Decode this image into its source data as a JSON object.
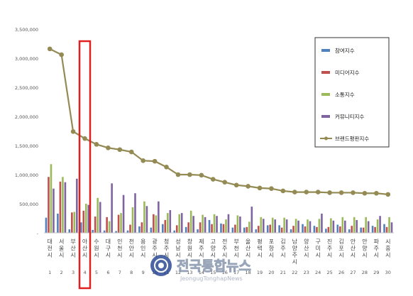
{
  "chart_data": {
    "type": "bar",
    "ylim": [
      0,
      3500000
    ],
    "yticks": [
      0,
      500000,
      1000000,
      1500000,
      2000000,
      2500000,
      3000000,
      3500000
    ],
    "ytick_labels": [
      "-",
      "500,000",
      "1,000,000",
      "1,500,000",
      "2,000,000",
      "2,500,000",
      "3,000,000",
      "3,500,000"
    ],
    "grid": false,
    "legend_position": "top-right",
    "categories": [
      "대전시",
      "서울시",
      "부산시",
      "아산시",
      "수원시",
      "대구시",
      "인천시",
      "천안시",
      "용인시",
      "광주시",
      "청주시",
      "성남시",
      "창원시",
      "제주시",
      "고양시",
      "전주시",
      "부천시",
      "울산시",
      "평택시",
      "포항시",
      "김주시",
      "남양주시",
      "양산시",
      "구미시",
      "진주시",
      "김포시",
      "안산시",
      "안양시",
      "파주시",
      "시흥시"
    ],
    "rank_labels": [
      "1",
      "2",
      "3",
      "4",
      "5",
      "6",
      "7",
      "8",
      "9",
      "10",
      "11",
      "12",
      "13",
      "14",
      "15",
      "16",
      "17",
      "18",
      "19",
      "20",
      "21",
      "22",
      "23",
      "24",
      "25",
      "26",
      "27",
      "28",
      "29",
      "30"
    ],
    "highlight_index": 3,
    "series": [
      {
        "name": "참여지수",
        "type": "bar",
        "color": "#4f81bd",
        "values": [
          260000,
          330000,
          60000,
          180000,
          50000,
          40000,
          30000,
          40000,
          110000,
          90000,
          150000,
          40000,
          100000,
          60000,
          220000,
          160000,
          90000,
          90000,
          60000,
          130000,
          130000,
          60000,
          150000,
          120000,
          70000,
          140000,
          60000,
          90000,
          120000,
          150000
        ]
      },
      {
        "name": "미디어지수",
        "type": "bar",
        "color": "#c0504d",
        "values": [
          960000,
          880000,
          350000,
          380000,
          280000,
          270000,
          310000,
          140000,
          180000,
          320000,
          220000,
          130000,
          180000,
          180000,
          150000,
          150000,
          140000,
          100000,
          120000,
          140000,
          90000,
          120000,
          110000,
          100000,
          100000,
          110000,
          120000,
          90000,
          100000,
          100000
        ]
      },
      {
        "name": "소통지수",
        "type": "bar",
        "color": "#9bbb59",
        "values": [
          1180000,
          960000,
          360000,
          500000,
          600000,
          200000,
          340000,
          440000,
          540000,
          300000,
          340000,
          320000,
          380000,
          310000,
          320000,
          230000,
          300000,
          190000,
          270000,
          260000,
          260000,
          240000,
          230000,
          240000,
          250000,
          270000,
          270000,
          270000,
          230000,
          270000
        ]
      },
      {
        "name": "커뮤니티지수",
        "type": "bar",
        "color": "#8064a2",
        "values": [
          760000,
          870000,
          930000,
          480000,
          530000,
          850000,
          650000,
          680000,
          460000,
          540000,
          390000,
          340000,
          290000,
          270000,
          290000,
          320000,
          280000,
          450000,
          240000,
          230000,
          230000,
          210000,
          200000,
          330000,
          210000,
          210000,
          220000,
          200000,
          290000,
          180000
        ]
      },
      {
        "name": "브랜드평판지수",
        "type": "line",
        "color": "#948a54",
        "values": [
          3160000,
          3060000,
          1740000,
          1620000,
          1520000,
          1460000,
          1430000,
          1390000,
          1240000,
          1230000,
          1130000,
          1000000,
          1000000,
          990000,
          920000,
          870000,
          820000,
          800000,
          770000,
          760000,
          720000,
          700000,
          700000,
          700000,
          690000,
          690000,
          690000,
          680000,
          680000,
          660000
        ]
      }
    ]
  },
  "watermark": {
    "korean": "전국통합뉴스",
    "english": "JeongugTonghapNews"
  }
}
